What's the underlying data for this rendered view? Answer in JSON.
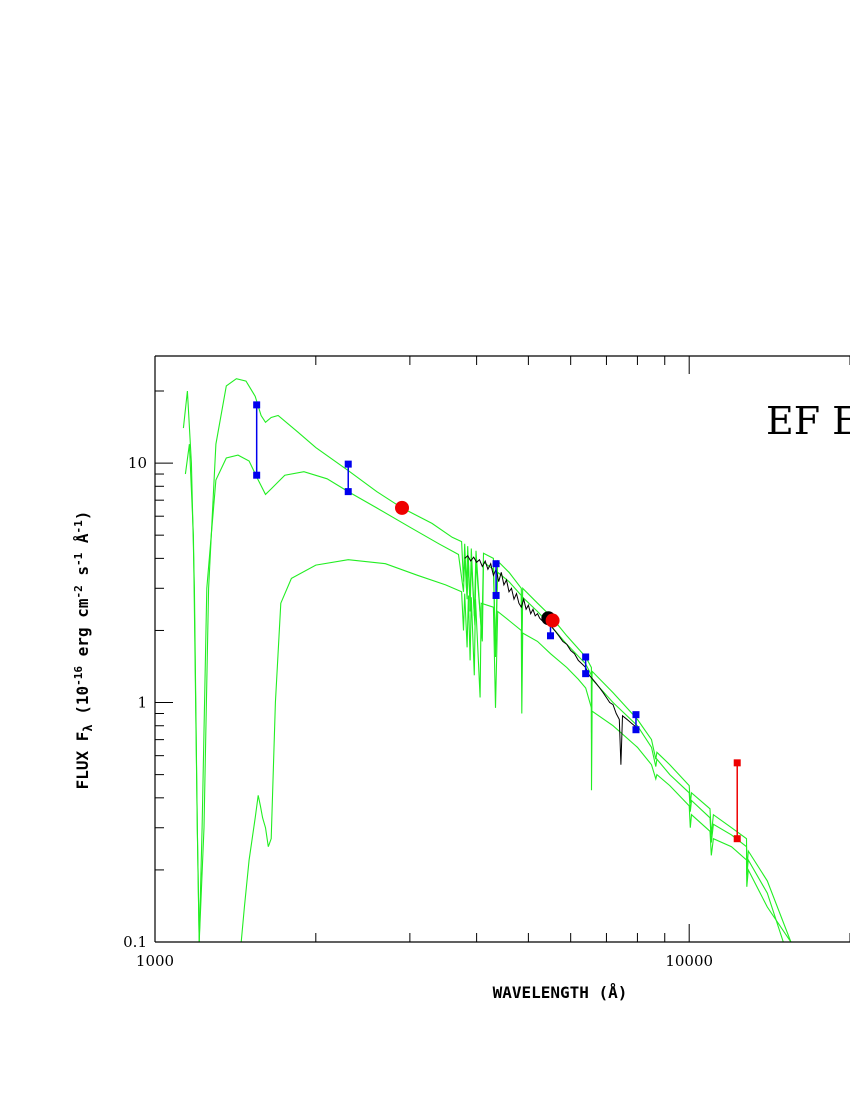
{
  "chart_data": {
    "type": "line",
    "title": "EF E",
    "xlabel": "WAVELENGTH (Å)",
    "ylabel_parts": {
      "prefix": "FLUX F",
      "sub": "λ",
      "paren_open": " (10",
      "exp1": "-16",
      "unit1": " erg cm",
      "exp2": "-2",
      "unit2": " s",
      "exp3": "-1",
      "unit3": " Å",
      "exp4": "-1",
      "close": ")"
    },
    "x_scale": "log",
    "y_scale": "log",
    "xlim": [
      1000,
      20000
    ],
    "ylim": [
      0.1,
      28
    ],
    "x_ticks": [
      {
        "value": 1000,
        "label": "1000"
      },
      {
        "value": 10000,
        "label": "10000"
      }
    ],
    "y_ticks": [
      {
        "value": 0.1,
        "label": "0.1"
      },
      {
        "value": 1,
        "label": "1"
      },
      {
        "value": 10,
        "label": "10"
      }
    ],
    "colors": {
      "model": "#22ee22",
      "spectrum": "#000000",
      "blue": "#0000ee",
      "red": "#ee0000",
      "axis": "#000000"
    },
    "model_curves": [
      {
        "points": [
          [
            1130,
            14
          ],
          [
            1150,
            20
          ],
          [
            1170,
            10
          ],
          [
            1185,
            3
          ],
          [
            1200,
            0.3
          ],
          [
            1210,
            0.1
          ],
          [
            1235,
            0.3
          ],
          [
            1260,
            3
          ],
          [
            1300,
            12
          ],
          [
            1360,
            21
          ],
          [
            1420,
            22.5
          ],
          [
            1480,
            22
          ],
          [
            1540,
            19
          ],
          [
            1580,
            15.8
          ],
          [
            1610,
            14.8
          ],
          [
            1650,
            15.5
          ],
          [
            1700,
            15.8
          ],
          [
            1850,
            13.5
          ],
          [
            2000,
            11.6
          ],
          [
            2300,
            9.3
          ],
          [
            2600,
            7.6
          ],
          [
            2900,
            6.5
          ],
          [
            3300,
            5.6
          ],
          [
            3600,
            4.9
          ],
          [
            3750,
            4.7
          ],
          [
            3780,
            3.2
          ],
          [
            3800,
            4.6
          ],
          [
            3830,
            3.0
          ],
          [
            3850,
            4.5
          ],
          [
            3890,
            2.6
          ],
          [
            3910,
            4.4
          ],
          [
            3960,
            2.3
          ],
          [
            3990,
            4.3
          ],
          [
            4090,
            1.85
          ],
          [
            4120,
            4.2
          ],
          [
            4300,
            4.0
          ],
          [
            4340,
            1.6
          ],
          [
            4380,
            3.9
          ],
          [
            4600,
            3.5
          ],
          [
            4850,
            3.0
          ],
          [
            4860,
            1.75
          ],
          [
            4880,
            3.0
          ],
          [
            5200,
            2.6
          ],
          [
            5500,
            2.3
          ],
          [
            5900,
            1.9
          ],
          [
            6400,
            1.55
          ],
          [
            6560,
            1.4
          ],
          [
            6563,
            0.75
          ],
          [
            6580,
            1.35
          ],
          [
            7200,
            1.1
          ],
          [
            8000,
            0.85
          ],
          [
            8500,
            0.7
          ],
          [
            8660,
            0.58
          ],
          [
            8700,
            0.62
          ],
          [
            9200,
            0.55
          ],
          [
            10000,
            0.45
          ],
          [
            10050,
            0.38
          ],
          [
            10100,
            0.42
          ],
          [
            10940,
            0.36
          ],
          [
            11000,
            0.28
          ],
          [
            11100,
            0.34
          ],
          [
            12000,
            0.3
          ],
          [
            12800,
            0.27
          ],
          [
            12820,
            0.2
          ],
          [
            12900,
            0.24
          ],
          [
            14000,
            0.18
          ],
          [
            15500,
            0.1
          ]
        ]
      },
      {
        "points": [
          [
            1140,
            9
          ],
          [
            1160,
            12
          ],
          [
            1180,
            5
          ],
          [
            1200,
            0.3
          ],
          [
            1210,
            0.1
          ],
          [
            1225,
            0.3
          ],
          [
            1250,
            3
          ],
          [
            1300,
            8.5
          ],
          [
            1360,
            10.5
          ],
          [
            1430,
            10.8
          ],
          [
            1500,
            10.2
          ],
          [
            1560,
            8.5
          ],
          [
            1610,
            7.4
          ],
          [
            1650,
            7.8
          ],
          [
            1750,
            8.9
          ],
          [
            1900,
            9.2
          ],
          [
            2100,
            8.6
          ],
          [
            2300,
            7.6
          ],
          [
            2600,
            6.5
          ],
          [
            3000,
            5.4
          ],
          [
            3400,
            4.6
          ],
          [
            3700,
            4.15
          ],
          [
            3780,
            2.9
          ],
          [
            3800,
            4.1
          ],
          [
            3840,
            2.7
          ],
          [
            3860,
            4.0
          ],
          [
            3890,
            2.4
          ],
          [
            3910,
            3.95
          ],
          [
            3970,
            2.1
          ],
          [
            3990,
            3.9
          ],
          [
            4100,
            1.8
          ],
          [
            4120,
            3.85
          ],
          [
            4300,
            3.6
          ],
          [
            4340,
            1.55
          ],
          [
            4380,
            3.5
          ],
          [
            4600,
            3.2
          ],
          [
            4850,
            2.8
          ],
          [
            4860,
            1.6
          ],
          [
            4880,
            2.75
          ],
          [
            5200,
            2.4
          ],
          [
            5500,
            2.1
          ],
          [
            5900,
            1.75
          ],
          [
            6400,
            1.45
          ],
          [
            6560,
            1.3
          ],
          [
            6563,
            0.7
          ],
          [
            6580,
            1.25
          ],
          [
            7200,
            1.0
          ],
          [
            8000,
            0.8
          ],
          [
            8500,
            0.65
          ],
          [
            8660,
            0.54
          ],
          [
            8700,
            0.58
          ],
          [
            9200,
            0.5
          ],
          [
            10000,
            0.42
          ],
          [
            10050,
            0.35
          ],
          [
            10100,
            0.39
          ],
          [
            10940,
            0.33
          ],
          [
            11000,
            0.26
          ],
          [
            11100,
            0.31
          ],
          [
            12000,
            0.28
          ],
          [
            12800,
            0.25
          ],
          [
            12820,
            0.19
          ],
          [
            12900,
            0.22
          ],
          [
            14000,
            0.16
          ],
          [
            15000,
            0.1
          ]
        ]
      },
      {
        "points": [
          [
            1450,
            0.1
          ],
          [
            1470,
            0.14
          ],
          [
            1500,
            0.22
          ],
          [
            1540,
            0.33
          ],
          [
            1560,
            0.41
          ],
          [
            1575,
            0.37
          ],
          [
            1590,
            0.33
          ],
          [
            1610,
            0.3
          ],
          [
            1630,
            0.25
          ],
          [
            1650,
            0.27
          ],
          [
            1680,
            1.0
          ],
          [
            1720,
            2.6
          ],
          [
            1800,
            3.3
          ],
          [
            2000,
            3.75
          ],
          [
            2300,
            3.95
          ],
          [
            2700,
            3.8
          ],
          [
            3100,
            3.4
          ],
          [
            3500,
            3.1
          ],
          [
            3750,
            2.9
          ],
          [
            3780,
            2.0
          ],
          [
            3800,
            2.85
          ],
          [
            3840,
            1.7
          ],
          [
            3860,
            2.8
          ],
          [
            3890,
            1.5
          ],
          [
            3910,
            2.75
          ],
          [
            3960,
            1.3
          ],
          [
            3980,
            2.7
          ],
          [
            4060,
            1.05
          ],
          [
            4080,
            2.6
          ],
          [
            4300,
            2.5
          ],
          [
            4340,
            0.95
          ],
          [
            4380,
            2.4
          ],
          [
            4600,
            2.2
          ],
          [
            4850,
            2.0
          ],
          [
            4860,
            0.9
          ],
          [
            4880,
            1.95
          ],
          [
            5200,
            1.8
          ],
          [
            5500,
            1.6
          ],
          [
            5900,
            1.4
          ],
          [
            6200,
            1.25
          ],
          [
            6400,
            1.15
          ],
          [
            6560,
            0.95
          ],
          [
            6563,
            0.43
          ],
          [
            6580,
            0.92
          ],
          [
            7200,
            0.8
          ],
          [
            8000,
            0.65
          ],
          [
            8500,
            0.55
          ],
          [
            8660,
            0.48
          ],
          [
            8700,
            0.5
          ],
          [
            9200,
            0.45
          ],
          [
            10000,
            0.37
          ],
          [
            10050,
            0.3
          ],
          [
            10100,
            0.34
          ],
          [
            10940,
            0.29
          ],
          [
            11000,
            0.23
          ],
          [
            11100,
            0.27
          ],
          [
            12000,
            0.25
          ],
          [
            12800,
            0.22
          ],
          [
            12820,
            0.17
          ],
          [
            12900,
            0.2
          ],
          [
            14000,
            0.14
          ],
          [
            15500,
            0.1
          ]
        ]
      }
    ],
    "spectrum": [
      [
        3800,
        4.0
      ],
      [
        3850,
        4.1
      ],
      [
        3900,
        3.9
      ],
      [
        3950,
        4.05
      ],
      [
        4000,
        3.85
      ],
      [
        4050,
        3.95
      ],
      [
        4100,
        3.7
      ],
      [
        4150,
        3.9
      ],
      [
        4200,
        3.6
      ],
      [
        4250,
        3.8
      ],
      [
        4300,
        3.4
      ],
      [
        4350,
        3.6
      ],
      [
        4400,
        3.2
      ],
      [
        4450,
        3.5
      ],
      [
        4500,
        3.1
      ],
      [
        4550,
        3.25
      ],
      [
        4600,
        2.9
      ],
      [
        4650,
        3.0
      ],
      [
        4700,
        2.7
      ],
      [
        4750,
        2.85
      ],
      [
        4800,
        2.6
      ],
      [
        4850,
        2.5
      ],
      [
        4900,
        2.7
      ],
      [
        4950,
        2.45
      ],
      [
        5000,
        2.55
      ],
      [
        5050,
        2.35
      ],
      [
        5100,
        2.45
      ],
      [
        5150,
        2.3
      ],
      [
        5200,
        2.35
      ],
      [
        5250,
        2.25
      ],
      [
        5300,
        2.2
      ],
      [
        5400,
        2.15
      ],
      [
        5500,
        2.1
      ],
      [
        5600,
        2.0
      ],
      [
        5700,
        1.9
      ],
      [
        5800,
        1.8
      ],
      [
        5900,
        1.75
      ],
      [
        6000,
        1.65
      ],
      [
        6100,
        1.6
      ],
      [
        6200,
        1.5
      ],
      [
        6300,
        1.45
      ],
      [
        6400,
        1.4
      ],
      [
        6500,
        1.3
      ],
      [
        6600,
        1.25
      ],
      [
        6700,
        1.2
      ],
      [
        6800,
        1.15
      ],
      [
        6900,
        1.1
      ],
      [
        7000,
        1.05
      ],
      [
        7100,
        1.0
      ],
      [
        7200,
        0.98
      ],
      [
        7300,
        0.9
      ],
      [
        7400,
        0.85
      ],
      [
        7450,
        0.55
      ],
      [
        7500,
        0.88
      ],
      [
        7600,
        0.86
      ],
      [
        7700,
        0.84
      ],
      [
        7800,
        0.82
      ],
      [
        7900,
        0.8
      ],
      [
        7950,
        0.78
      ]
    ],
    "blue_bars": [
      {
        "x": 1550,
        "y_low": 8.9,
        "y_high": 17.5
      },
      {
        "x": 2300,
        "y_low": 7.6,
        "y_high": 9.9
      },
      {
        "x": 4350,
        "y_low": 2.8,
        "y_high": 3.8
      },
      {
        "x": 5500,
        "y_low": 1.9,
        "y_high": 2.2
      },
      {
        "x": 6400,
        "y_low": 1.32,
        "y_high": 1.55
      },
      {
        "x": 7950,
        "y_low": 0.77,
        "y_high": 0.89
      }
    ],
    "red_bars": [
      {
        "x": 12300,
        "y_low": 0.27,
        "y_high": 0.56
      }
    ],
    "red_points": [
      {
        "x": 2900,
        "y": 6.5
      },
      {
        "x": 5550,
        "y": 2.2
      }
    ],
    "black_points": [
      {
        "x": 5450,
        "y": 2.25
      }
    ]
  }
}
